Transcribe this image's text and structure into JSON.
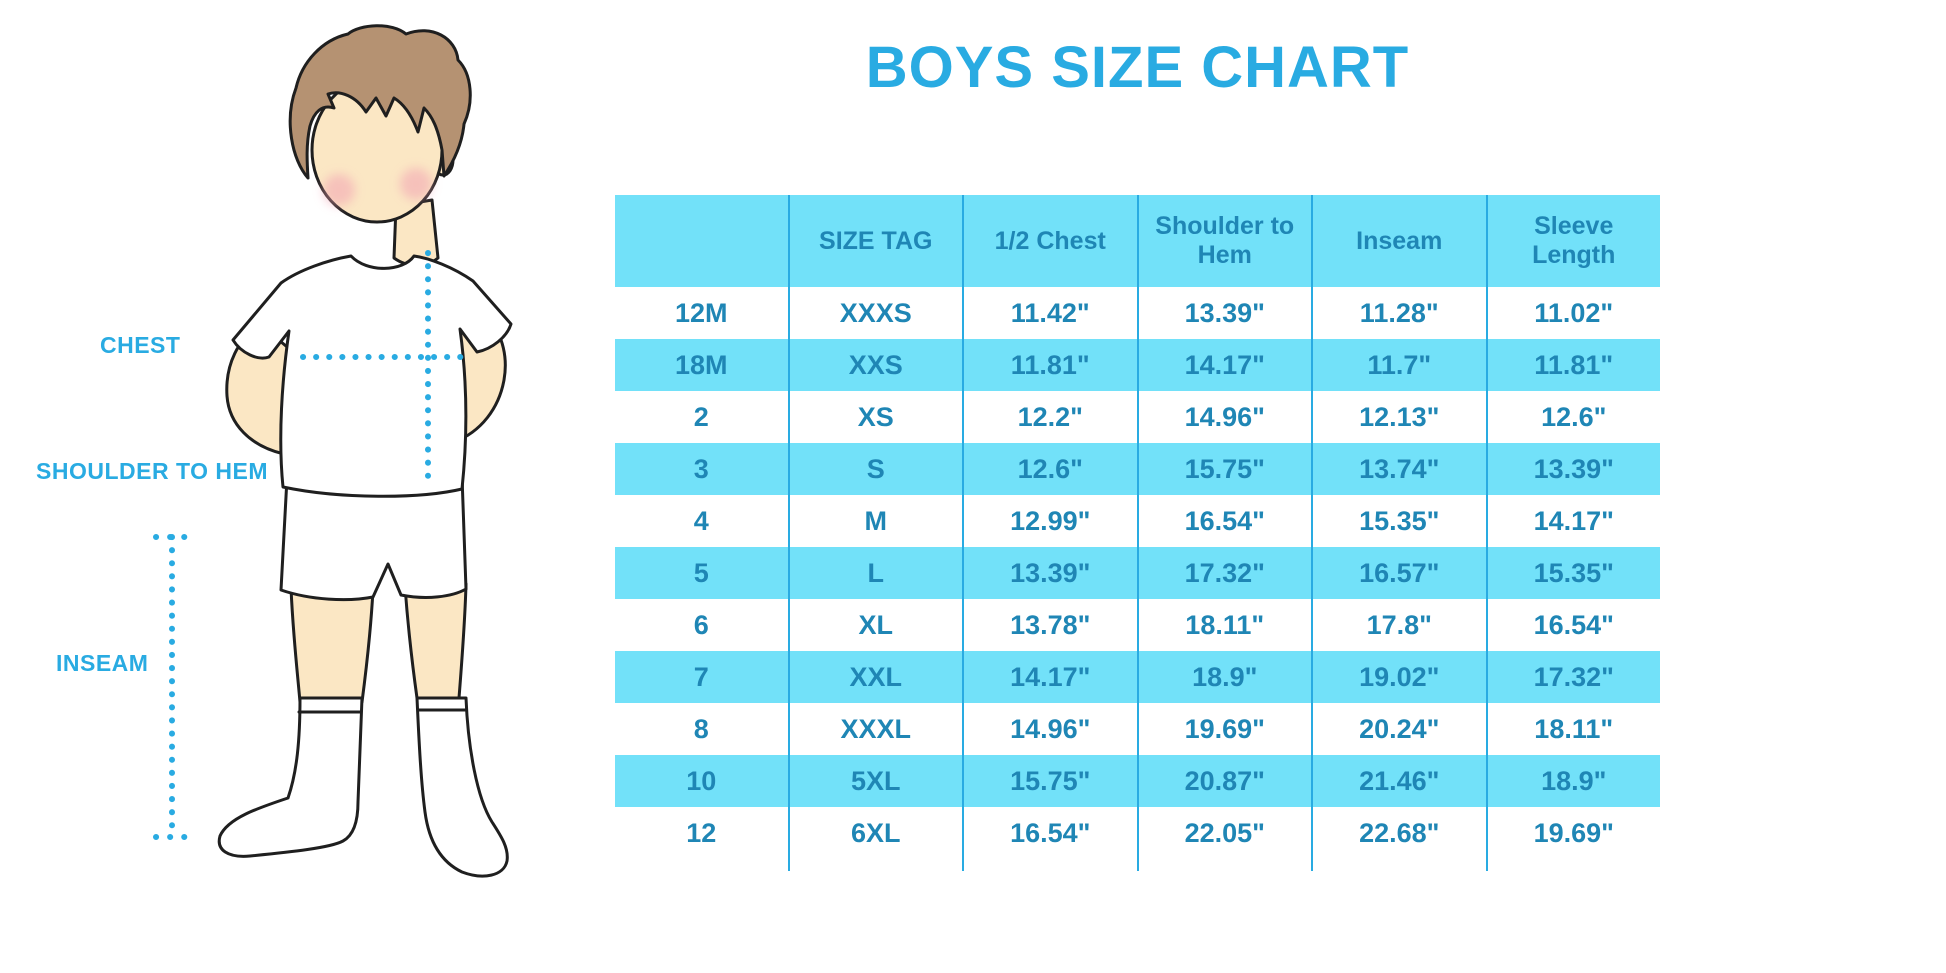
{
  "title": "BOYS SIZE CHART",
  "colors": {
    "accent": "#29ABE2",
    "table_text": "#1F86B5",
    "stripe_background": "#72E1F9",
    "skin": "#FBE7C4",
    "hair": "#B59272"
  },
  "figure": {
    "labels": {
      "chest": "CHEST",
      "shoulder_to_hem": "SHOULDER TO HEM",
      "inseam": "INSEAM"
    }
  },
  "chart_data": {
    "type": "table",
    "title": "BOYS SIZE CHART",
    "columns": [
      "",
      "SIZE TAG",
      "1/2 Chest",
      "Shoulder to Hem",
      "Inseam",
      "Sleeve Length"
    ],
    "rows": [
      [
        "12M",
        "XXXS",
        "11.42\"",
        "13.39\"",
        "11.28\"",
        "11.02\""
      ],
      [
        "18M",
        "XXS",
        "11.81\"",
        "14.17\"",
        "11.7\"",
        "11.81\""
      ],
      [
        "2",
        "XS",
        "12.2\"",
        "14.96\"",
        "12.13\"",
        "12.6\""
      ],
      [
        "3",
        "S",
        "12.6\"",
        "15.75\"",
        "13.74\"",
        "13.39\""
      ],
      [
        "4",
        "M",
        "12.99\"",
        "16.54\"",
        "15.35\"",
        "14.17\""
      ],
      [
        "5",
        "L",
        "13.39\"",
        "17.32\"",
        "16.57\"",
        "15.35\""
      ],
      [
        "6",
        "XL",
        "13.78\"",
        "18.11\"",
        "17.8\"",
        "16.54\""
      ],
      [
        "7",
        "XXL",
        "14.17\"",
        "18.9\"",
        "19.02\"",
        "17.32\""
      ],
      [
        "8",
        "XXXL",
        "14.96\"",
        "19.69\"",
        "20.24\"",
        "18.11\""
      ],
      [
        "10",
        "5XL",
        "15.75\"",
        "20.87\"",
        "21.46\"",
        "18.9\""
      ],
      [
        "12",
        "6XL",
        "16.54\"",
        "22.05\"",
        "22.68\"",
        "19.69\""
      ]
    ],
    "layout": {
      "row_striping": "alternate white / light cyan starting white",
      "vertical_dividers_only": true
    }
  }
}
